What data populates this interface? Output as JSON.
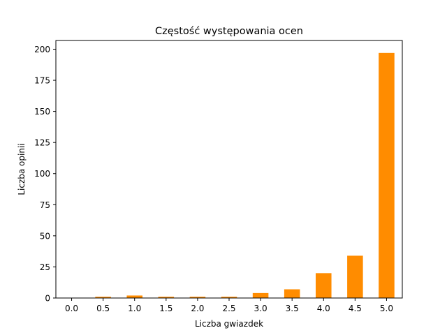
{
  "chart_data": {
    "type": "bar",
    "title": "Częstość występowania ocen",
    "xlabel": "Liczba gwiazdek",
    "ylabel": "Liczba opinii",
    "categories": [
      "0.0",
      "0.5",
      "1.0",
      "1.5",
      "2.0",
      "2.5",
      "3.0",
      "3.5",
      "4.0",
      "4.5",
      "5.0"
    ],
    "values": [
      0,
      1,
      2,
      1,
      1,
      1,
      4,
      7,
      20,
      34,
      197
    ],
    "ylim": [
      0,
      207
    ],
    "yticks": [
      0,
      25,
      50,
      75,
      100,
      125,
      150,
      175,
      200
    ],
    "bar_color": "#ff8c00",
    "grid": false,
    "legend": "none"
  }
}
